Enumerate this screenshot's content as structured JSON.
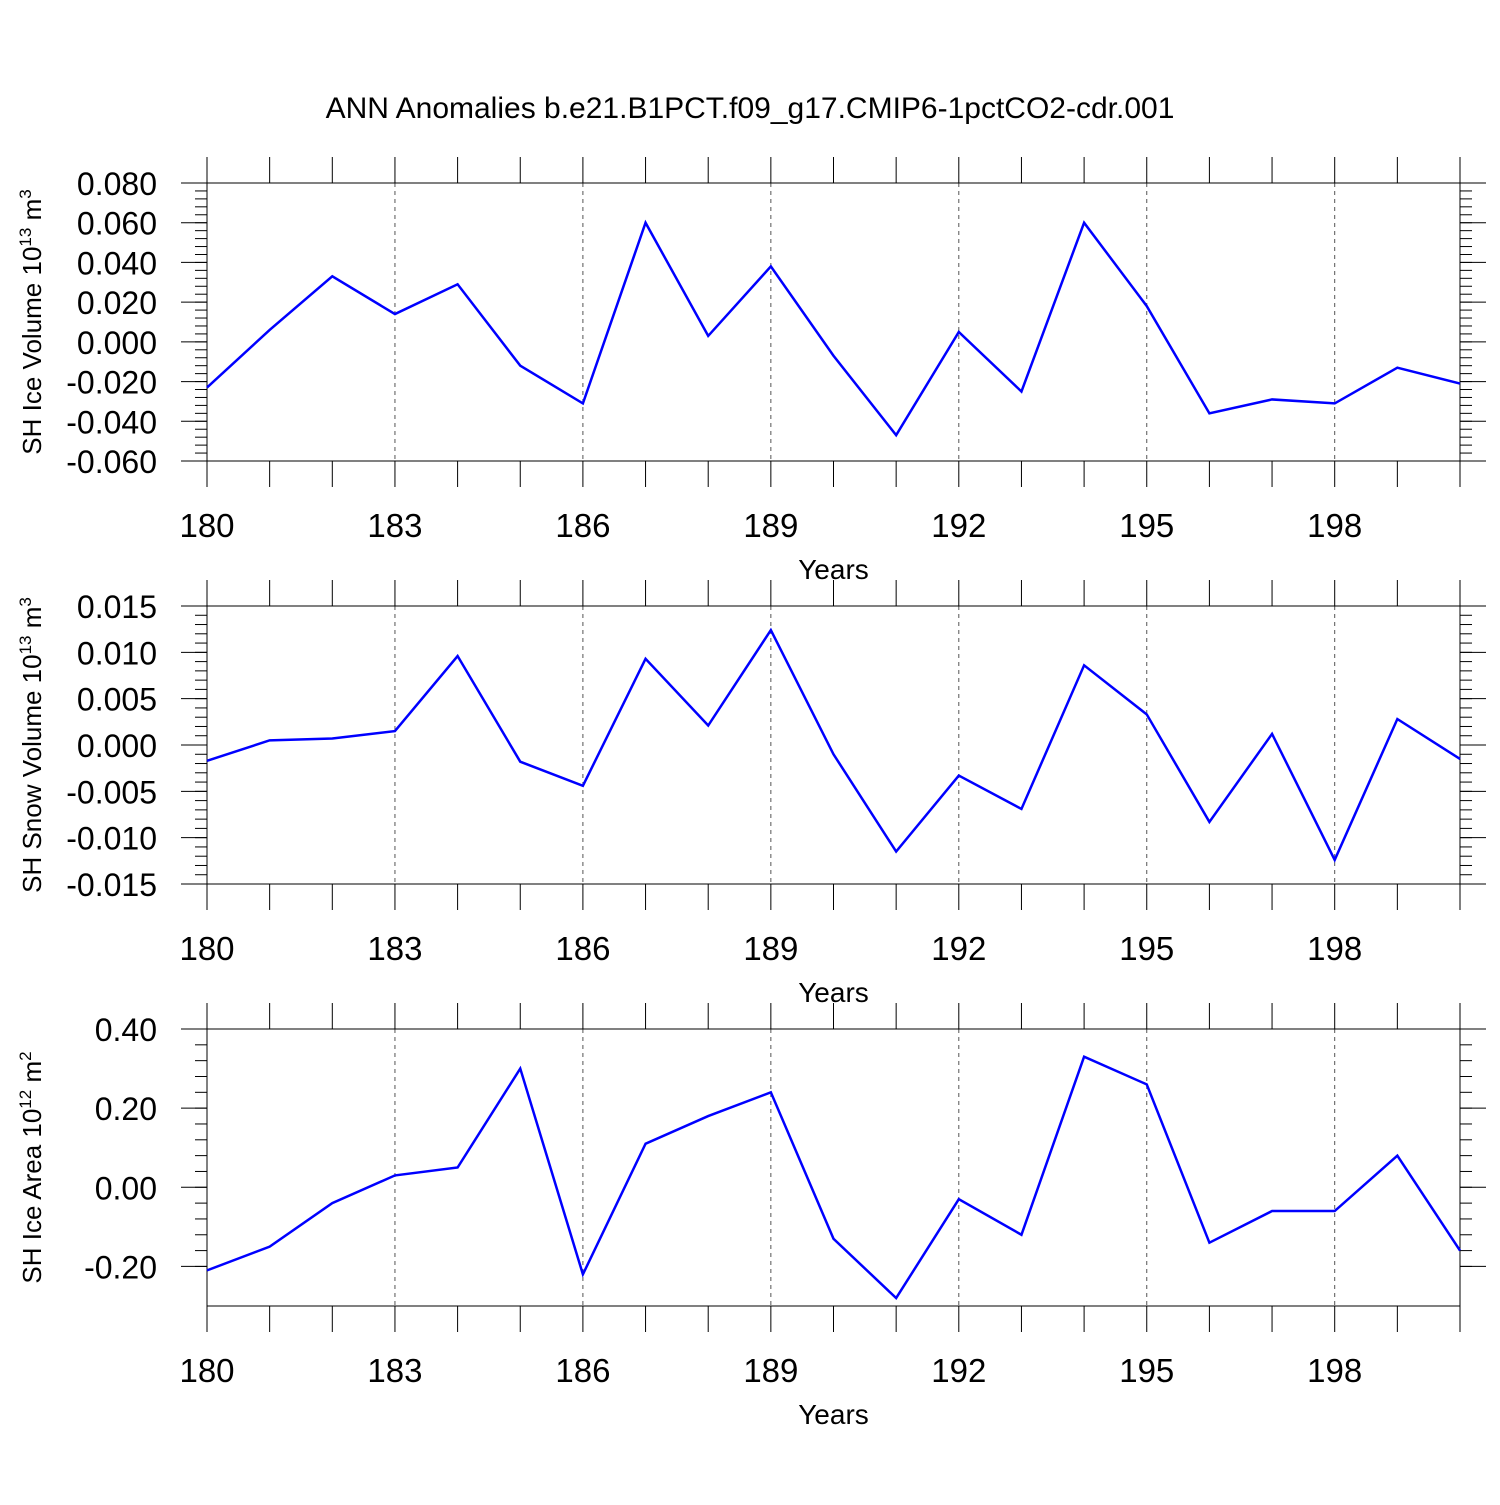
{
  "title": "ANN Anomalies b.e21.B1PCT.f09_g17.CMIP6-1pctCO2-cdr.001",
  "colors": {
    "series": "#0000ff",
    "axis": "#000000",
    "grid": "#555555"
  },
  "chart_data": [
    {
      "type": "line",
      "ylabel": {
        "text": "SH Ice Volume 10",
        "exp": "13",
        "unit": " m",
        "unit_exp": "3"
      },
      "xlabel": "Years",
      "x": [
        180,
        181,
        182,
        183,
        184,
        185,
        186,
        187,
        188,
        189,
        190,
        191,
        192,
        193,
        194,
        195,
        196,
        197,
        198,
        199,
        200
      ],
      "values": [
        -0.023,
        0.006,
        0.033,
        0.014,
        0.029,
        -0.012,
        -0.031,
        0.06,
        0.003,
        0.038,
        -0.007,
        -0.047,
        0.005,
        -0.025,
        0.06,
        0.018,
        -0.036,
        -0.029,
        -0.031,
        -0.013,
        -0.021
      ],
      "xlim": [
        180,
        200
      ],
      "ylim": [
        -0.06,
        0.08
      ],
      "xticks": [
        "180",
        "183",
        "186",
        "189",
        "192",
        "195",
        "198"
      ],
      "yticks": [
        "0.080",
        "0.060",
        "0.040",
        "0.020",
        "0.000",
        "-0.020",
        "-0.040",
        "-0.060"
      ],
      "grid": "vertical dashed at labeled x ticks"
    },
    {
      "type": "line",
      "ylabel": {
        "text": "SH Snow Volume 10",
        "exp": "13",
        "unit": " m",
        "unit_exp": "3"
      },
      "xlabel": "Years",
      "x": [
        180,
        181,
        182,
        183,
        184,
        185,
        186,
        187,
        188,
        189,
        190,
        191,
        192,
        193,
        194,
        195,
        196,
        197,
        198,
        199,
        200
      ],
      "values": [
        -0.0017,
        0.0005,
        0.0007,
        0.0015,
        0.0096,
        -0.0018,
        -0.0044,
        0.0093,
        0.0021,
        0.0124,
        -0.001,
        -0.0115,
        -0.0033,
        -0.0069,
        0.0086,
        0.0033,
        -0.0083,
        0.0012,
        -0.0124,
        0.0028,
        -0.0015
      ],
      "xlim": [
        180,
        200
      ],
      "ylim": [
        -0.015,
        0.015
      ],
      "xticks": [
        "180",
        "183",
        "186",
        "189",
        "192",
        "195",
        "198"
      ],
      "yticks": [
        "0.015",
        "0.010",
        "0.005",
        "0.000",
        "-0.005",
        "-0.010",
        "-0.015"
      ],
      "grid": "vertical dashed at labeled x ticks"
    },
    {
      "type": "line",
      "ylabel": {
        "text": "SH Ice Area 10",
        "exp": "12",
        "unit": " m",
        "unit_exp": "2"
      },
      "xlabel": "Years",
      "x": [
        180,
        181,
        182,
        183,
        184,
        185,
        186,
        187,
        188,
        189,
        190,
        191,
        192,
        193,
        194,
        195,
        196,
        197,
        198,
        199,
        200
      ],
      "values": [
        -0.21,
        -0.15,
        -0.04,
        0.03,
        0.05,
        0.3,
        -0.22,
        0.11,
        0.18,
        0.24,
        -0.13,
        -0.28,
        -0.03,
        -0.12,
        0.33,
        0.26,
        -0.14,
        -0.06,
        -0.06,
        0.08,
        -0.16
      ],
      "xlim": [
        180,
        200
      ],
      "ylim": [
        -0.3,
        0.4
      ],
      "xticks": [
        "180",
        "183",
        "186",
        "189",
        "192",
        "195",
        "198"
      ],
      "yticks": [
        "0.40",
        "0.20",
        "0.00",
        "-0.20"
      ],
      "grid": "vertical dashed at labeled x ticks"
    }
  ]
}
